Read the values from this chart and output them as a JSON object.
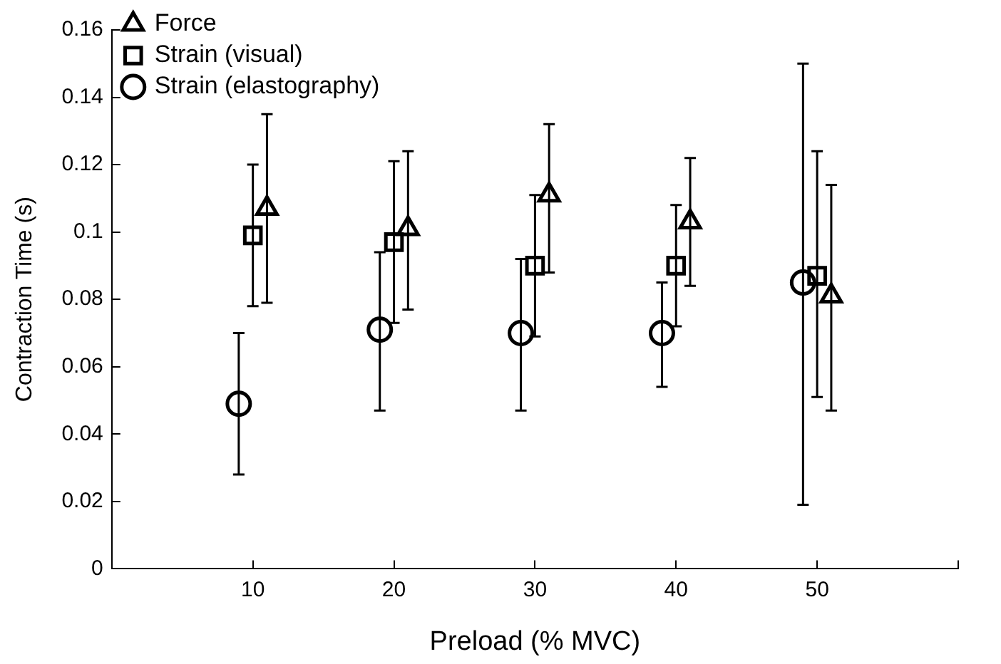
{
  "chart_data": {
    "type": "scatter",
    "xlabel": "Preload (% MVC)",
    "ylabel": "Contraction Time (s)",
    "xlim": [
      0,
      60
    ],
    "xticks": [
      10,
      20,
      30,
      40,
      50,
      {
        "value": 60,
        "label": null
      }
    ],
    "ylim": [
      0,
      0.16
    ],
    "yticks": [
      0,
      0.02,
      0.04,
      0.06,
      0.08,
      0.1,
      0.12,
      0.14,
      0.16
    ],
    "grid": false,
    "legend": "top left",
    "series": [
      {
        "name": "Force",
        "color": "#000000",
        "marker": "triangle",
        "x": [
          11,
          21,
          31,
          41,
          51
        ],
        "values": [
          0.107,
          0.101,
          0.111,
          0.103,
          0.081
        ],
        "errors": [
          [
            0.079,
            0.135
          ],
          [
            0.077,
            0.124
          ],
          [
            0.088,
            0.132
          ],
          [
            0.084,
            0.122
          ],
          [
            0.047,
            0.114
          ]
        ]
      },
      {
        "name": "Strain (visual)",
        "color": "#000000",
        "marker": "square",
        "x": [
          10,
          20,
          30,
          40,
          50
        ],
        "values": [
          0.099,
          0.097,
          0.09,
          0.09,
          0.087
        ],
        "errors": [
          [
            0.078,
            0.12
          ],
          [
            0.073,
            0.121
          ],
          [
            0.069,
            0.111
          ],
          [
            0.072,
            0.108
          ],
          [
            0.051,
            0.124
          ]
        ]
      },
      {
        "name": "Strain (elastography)",
        "color": "#000000",
        "marker": "circle",
        "x": [
          9,
          19,
          29,
          39,
          49
        ],
        "values": [
          0.049,
          0.071,
          0.07,
          0.07,
          0.085
        ],
        "errors": [
          [
            0.028,
            0.07
          ],
          [
            0.047,
            0.094
          ],
          [
            0.047,
            0.092
          ],
          [
            0.054,
            0.085
          ],
          [
            0.019,
            0.15
          ]
        ]
      }
    ]
  }
}
